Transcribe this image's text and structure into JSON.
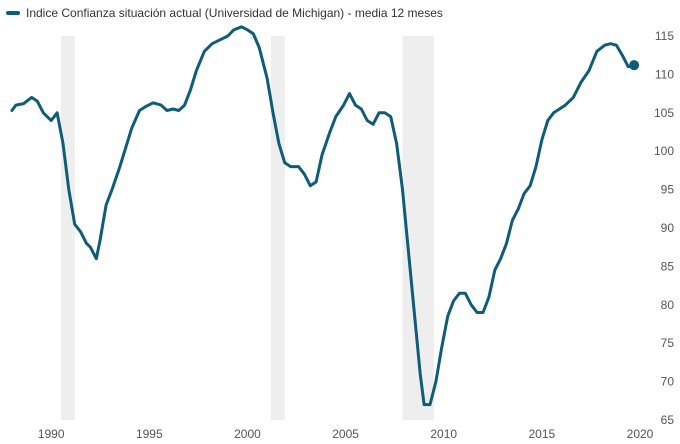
{
  "legend": {
    "label": "Indice Confianza situación actual (Universidad de Michigan) - media 12 meses",
    "color": "#0f5c78"
  },
  "chart_data": {
    "type": "line",
    "title": "",
    "xlabel": "",
    "ylabel": "",
    "x_range": [
      1987.8,
      2020.0
    ],
    "ylim": [
      65,
      115
    ],
    "y_ticks": [
      65,
      70,
      75,
      80,
      85,
      90,
      95,
      100,
      105,
      110,
      115
    ],
    "x_ticks": [
      1990,
      1995,
      2000,
      2005,
      2010,
      2015,
      2020
    ],
    "y_axis_position": "right",
    "grid": false,
    "legend_position": "top-left",
    "recession_shading": [
      {
        "start": 1990.5,
        "end": 1991.2
      },
      {
        "start": 2001.2,
        "end": 2001.9
      },
      {
        "start": 2007.9,
        "end": 2009.5
      }
    ],
    "series": [
      {
        "name": "Indice Confianza situación actual (Universidad de Michigan) - media 12 meses",
        "color": "#0f5c78",
        "end_marker": true,
        "points": [
          [
            1988.0,
            105.3
          ],
          [
            1988.2,
            106.0
          ],
          [
            1988.6,
            106.2
          ],
          [
            1989.0,
            107.0
          ],
          [
            1989.3,
            106.5
          ],
          [
            1989.6,
            105.0
          ],
          [
            1990.0,
            104.0
          ],
          [
            1990.3,
            105.0
          ],
          [
            1990.6,
            101.0
          ],
          [
            1990.9,
            95.0
          ],
          [
            1991.2,
            90.5
          ],
          [
            1991.5,
            89.5
          ],
          [
            1991.8,
            88.0
          ],
          [
            1992.0,
            87.5
          ],
          [
            1992.3,
            86.0
          ],
          [
            1992.5,
            88.5
          ],
          [
            1992.8,
            93.0
          ],
          [
            1993.1,
            95.0
          ],
          [
            1993.5,
            98.0
          ],
          [
            1993.8,
            100.5
          ],
          [
            1994.1,
            103.0
          ],
          [
            1994.5,
            105.3
          ],
          [
            1994.8,
            105.8
          ],
          [
            1995.2,
            106.3
          ],
          [
            1995.6,
            106.0
          ],
          [
            1995.9,
            105.3
          ],
          [
            1996.2,
            105.5
          ],
          [
            1996.5,
            105.3
          ],
          [
            1996.8,
            106.0
          ],
          [
            1997.1,
            108.0
          ],
          [
            1997.4,
            110.5
          ],
          [
            1997.8,
            113.0
          ],
          [
            1998.2,
            114.0
          ],
          [
            1998.6,
            114.5
          ],
          [
            1999.0,
            115.0
          ],
          [
            1999.3,
            115.8
          ],
          [
            1999.7,
            116.2
          ],
          [
            2000.0,
            115.8
          ],
          [
            2000.3,
            115.3
          ],
          [
            2000.6,
            113.5
          ],
          [
            2001.0,
            109.5
          ],
          [
            2001.3,
            105.0
          ],
          [
            2001.6,
            101.0
          ],
          [
            2001.9,
            98.5
          ],
          [
            2002.2,
            98.0
          ],
          [
            2002.6,
            98.0
          ],
          [
            2002.9,
            97.0
          ],
          [
            2003.2,
            95.5
          ],
          [
            2003.5,
            96.0
          ],
          [
            2003.8,
            99.5
          ],
          [
            2004.2,
            102.5
          ],
          [
            2004.5,
            104.5
          ],
          [
            2004.9,
            106.0
          ],
          [
            2005.2,
            107.5
          ],
          [
            2005.5,
            106.0
          ],
          [
            2005.8,
            105.5
          ],
          [
            2006.1,
            104.0
          ],
          [
            2006.4,
            103.5
          ],
          [
            2006.7,
            105.0
          ],
          [
            2007.0,
            105.0
          ],
          [
            2007.3,
            104.5
          ],
          [
            2007.6,
            101.0
          ],
          [
            2007.9,
            95.0
          ],
          [
            2008.2,
            87.0
          ],
          [
            2008.5,
            79.0
          ],
          [
            2008.8,
            71.0
          ],
          [
            2009.0,
            67.0
          ],
          [
            2009.3,
            67.0
          ],
          [
            2009.6,
            70.0
          ],
          [
            2009.9,
            74.5
          ],
          [
            2010.2,
            78.5
          ],
          [
            2010.5,
            80.5
          ],
          [
            2010.8,
            81.5
          ],
          [
            2011.1,
            81.5
          ],
          [
            2011.4,
            80.0
          ],
          [
            2011.7,
            79.0
          ],
          [
            2012.0,
            79.0
          ],
          [
            2012.3,
            81.0
          ],
          [
            2012.6,
            84.5
          ],
          [
            2012.9,
            86.0
          ],
          [
            2013.2,
            88.0
          ],
          [
            2013.5,
            91.0
          ],
          [
            2013.8,
            92.5
          ],
          [
            2014.1,
            94.5
          ],
          [
            2014.4,
            95.5
          ],
          [
            2014.7,
            98.0
          ],
          [
            2015.0,
            101.5
          ],
          [
            2015.3,
            104.0
          ],
          [
            2015.6,
            105.0
          ],
          [
            2015.9,
            105.5
          ],
          [
            2016.2,
            106.0
          ],
          [
            2016.6,
            107.0
          ],
          [
            2017.0,
            109.0
          ],
          [
            2017.4,
            110.5
          ],
          [
            2017.8,
            113.0
          ],
          [
            2018.2,
            113.8
          ],
          [
            2018.5,
            114.0
          ],
          [
            2018.8,
            113.8
          ],
          [
            2019.1,
            112.5
          ],
          [
            2019.4,
            111.0
          ],
          [
            2019.7,
            111.2
          ]
        ]
      }
    ]
  }
}
